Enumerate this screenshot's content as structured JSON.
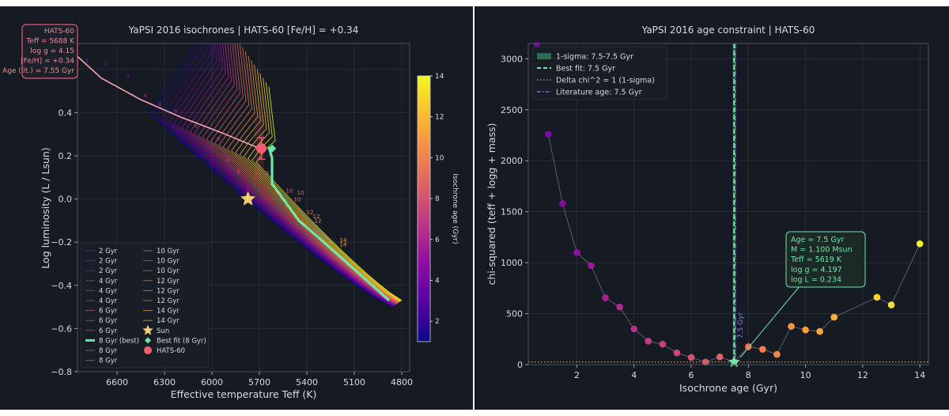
{
  "colors": {
    "background": "#161a22",
    "axis_bg": "#161a22",
    "grid": "#2b303b",
    "text": "#d8dbe2",
    "best_fit": "#6ee7a8",
    "hats_marker": "#f25c6e",
    "sun_marker": "#f2cf6f",
    "literature_line": "#7b86e0",
    "delta_chi_line": "#e2a062"
  },
  "chart_data": [
    {
      "type": "line",
      "title": "YaPSI 2016 isochrones  |  HATS-60  [Fe/H] = +0.34",
      "xlabel": "Effective temperature  Teff (K)",
      "ylabel": "Log luminosity  (L / Lsun)",
      "xlim": [
        6850,
        4750
      ],
      "ylim": [
        -0.8,
        0.72
      ],
      "x_ticks": [
        "6600",
        "6300",
        "6000",
        "5700",
        "5400",
        "5100",
        "4800"
      ],
      "y_ticks": [
        "−0.8",
        "−0.6",
        "−0.4",
        "−0.2",
        "0.0",
        "0.2",
        "0.4",
        "0.6"
      ],
      "grid": true,
      "legend_position": "bottom-left",
      "colorbar": {
        "label": "Isochrone age (Gyr)",
        "ticks": [
          "2",
          "4",
          "6",
          "8",
          "10",
          "12",
          "14"
        ],
        "range": [
          1,
          14
        ]
      },
      "legend_col1": [
        "2 Gyr",
        "2 Gyr",
        "2 Gyr",
        "4 Gyr",
        "4 Gyr",
        "4 Gyr",
        "6 Gyr",
        "6 Gyr",
        "6 Gyr",
        "8 Gyr (best)",
        "8 Gyr",
        "8 Gyr"
      ],
      "legend_col2": [
        "10 Gyr",
        "10 Gyr",
        "10 Gyr",
        "12 Gyr",
        "12 Gyr",
        "12 Gyr",
        "14 Gyr",
        "14 Gyr",
        "Sun",
        "Best fit (8 Gyr)",
        "HATS-60"
      ],
      "isochrone_labels": [
        "2",
        "2",
        "2",
        "4",
        "4",
        "4",
        "6",
        "6",
        "6",
        "8",
        "8",
        "8",
        "10",
        "10",
        "10",
        "12",
        "12",
        "12",
        "14",
        "14"
      ],
      "isochrones_ages": [
        1,
        1.5,
        2,
        2.5,
        3,
        3.5,
        4,
        4.5,
        5,
        5.5,
        6,
        6.5,
        7,
        7.5,
        8,
        8.5,
        9,
        9.5,
        10,
        10.5,
        11,
        11.5,
        12,
        12.5,
        13,
        13.5,
        14
      ],
      "best_fit_track": {
        "name": "8 Gyr (best)",
        "teff": [
          4880,
          5200,
          5450,
          5620,
          5620,
          5640
        ],
        "logL": [
          -0.47,
          -0.26,
          -0.1,
          0.07,
          0.19,
          0.24
        ]
      },
      "hats60_track": {
        "teff": [
          6850,
          6700,
          6450,
          6200,
          5950,
          5750,
          5700
        ],
        "logL": [
          0.66,
          0.56,
          0.46,
          0.38,
          0.31,
          0.25,
          0.235
        ]
      },
      "points": [
        {
          "name": "Sun",
          "teff": 5772,
          "logL": 0.0
        },
        {
          "name": "Best fit (8 Gyr)",
          "teff": 5619,
          "logL": 0.234
        },
        {
          "name": "HATS-60",
          "teff": 5688,
          "logL": 0.234,
          "err": 0.05
        }
      ],
      "info_box": [
        "HATS-60",
        "Teff = 5688 K",
        "log g = 4.15",
        "[Fe/H] = +0.34",
        "Age (lit.) = 7.55 Gyr"
      ]
    },
    {
      "type": "scatter",
      "title": "YaPSI 2016 age constraint  |  HATS-60",
      "xlabel": "Isochrone age  (Gyr)",
      "ylabel": "chi-squared  (teff + logg + mass)",
      "xlim": [
        0.3,
        14.3
      ],
      "ylim": [
        0,
        3150
      ],
      "x_ticks": [
        "2",
        "4",
        "6",
        "8",
        "10",
        "12",
        "14"
      ],
      "y_ticks": [
        "0",
        "500",
        "1000",
        "1500",
        "2000",
        "2500",
        "3000"
      ],
      "grid": true,
      "legend_position": "top-left",
      "x": [
        1.0,
        1.5,
        2.0,
        2.5,
        3.0,
        3.5,
        4.0,
        4.5,
        5.0,
        5.5,
        6.0,
        6.5,
        7.0,
        7.5,
        8.0,
        8.5,
        9.0,
        9.5,
        10.0,
        10.5,
        11.0,
        12.5,
        13.0,
        14.0
      ],
      "y": [
        2260,
        1580,
        1100,
        970,
        655,
        565,
        350,
        230,
        200,
        115,
        70,
        25,
        75,
        25,
        175,
        150,
        100,
        375,
        340,
        325,
        465,
        660,
        585,
        1185
      ],
      "best_fit_age": 7.5,
      "literature_age": 7.55,
      "delta_chi2_level": 26,
      "legend": [
        "1-sigma: 7.5-7.5 Gyr",
        "Best fit: 7.5 Gyr",
        "Delta chi^2 = 1  (1-sigma)",
        "Literature age: 7.5 Gyr"
      ],
      "annotation": [
        "Age = 7.5 Gyr",
        "M = 1.100 Msun",
        "Teff = 5619 K",
        "log g = 4.197",
        "log L = 0.234"
      ],
      "vline_label": "7.5 Gyr"
    }
  ]
}
